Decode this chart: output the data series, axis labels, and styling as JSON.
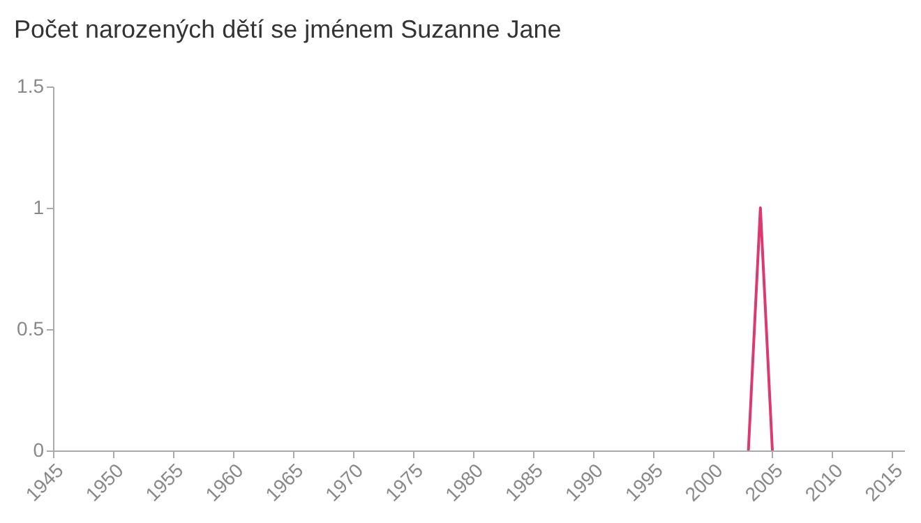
{
  "chart_data": {
    "type": "line",
    "title": "Počet narozených dětí se jménem Suzanne Jane",
    "x": [
      2003,
      2004,
      2005
    ],
    "series": [
      {
        "color": "#dc3a6e",
        "values": [
          0,
          1,
          0
        ]
      }
    ],
    "xlim": [
      1945,
      2016
    ],
    "xticks": [
      1945,
      1950,
      1955,
      1960,
      1965,
      1970,
      1975,
      1980,
      1985,
      1990,
      1995,
      2000,
      2005,
      2010,
      2015
    ],
    "ylim": [
      0,
      1.5
    ],
    "yticks": [
      0,
      0.5,
      1,
      1.5
    ],
    "grid": false,
    "legend": false
  }
}
